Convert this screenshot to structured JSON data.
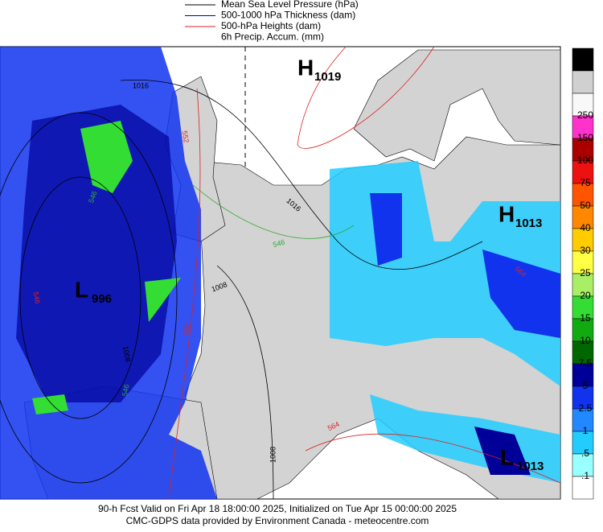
{
  "legend": [
    {
      "name": "Mean Sea Level Pressure (hPa)",
      "color": "#000000"
    },
    {
      "name": "500-1000 hPa Thickness (dam)",
      "color": "#0000cc"
    },
    {
      "name": "500-hPa Heights (dam)",
      "color": "#dd2222"
    },
    {
      "name": "6h Precip. Accum. (mm)",
      "color": null
    }
  ],
  "colorbar": {
    "colors": [
      "#000000",
      "#d0d0d0",
      "#f8f8f8",
      "#ff33cc",
      "#aa0000",
      "#ee1111",
      "#ff5500",
      "#ff8800",
      "#ffcc00",
      "#ffff44",
      "#aaee66",
      "#33dd33",
      "#11aa11",
      "#006600",
      "#000099",
      "#1133ee",
      "#2288ff",
      "#22ccff",
      "#99ffff",
      "#ffffff"
    ],
    "labels": [
      "250",
      "150",
      "100",
      "75",
      "50",
      "40",
      "30",
      "25",
      "20",
      "15",
      "10",
      "7.5",
      "5",
      "2.5",
      "1",
      ".5",
      ".1"
    ]
  },
  "centers": [
    {
      "letter": "H",
      "value": "1019"
    },
    {
      "letter": "L",
      "value": "996"
    },
    {
      "letter": "H",
      "value": "1013"
    },
    {
      "letter": "L",
      "value": "1013"
    }
  ],
  "contour_labels": [
    {
      "text": "1016",
      "color": "#000000"
    },
    {
      "text": "552",
      "color": "#dd2222"
    },
    {
      "text": "1016",
      "color": "#000000"
    },
    {
      "text": "546",
      "color": "#33aa33"
    },
    {
      "text": "1008",
      "color": "#000000"
    },
    {
      "text": "552",
      "color": "#dd2222"
    },
    {
      "text": "546",
      "color": "#dd2222"
    },
    {
      "text": "1008",
      "color": "#000000"
    },
    {
      "text": "546",
      "color": "#33aa33"
    },
    {
      "text": "1008",
      "color": "#000000"
    },
    {
      "text": "564",
      "color": "#dd2222"
    },
    {
      "text": "564",
      "color": "#dd2222"
    },
    {
      "text": "546",
      "color": "#33aa33"
    }
  ],
  "footer": [
    "90-h Fcst Valid on Fri Apr 18 18:00:00 2025, Initialized on Tue Apr 15 00:00:00 2025",
    "CMC-GDPS data provided by Environment Canada - meteocentre.com"
  ]
}
